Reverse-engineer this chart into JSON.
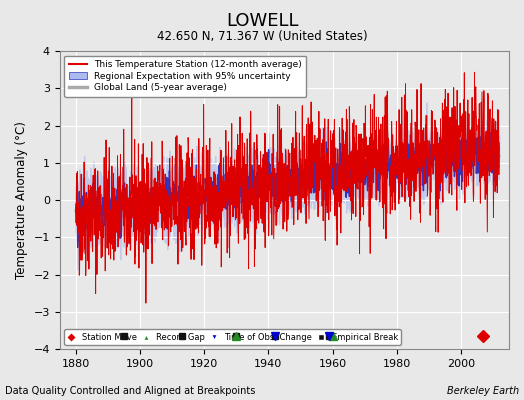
{
  "title": "LOWELL",
  "subtitle": "42.650 N, 71.367 W (United States)",
  "xlabel_bottom": "Data Quality Controlled and Aligned at Breakpoints",
  "xlabel_right": "Berkeley Earth",
  "ylabel": "Temperature Anomaly (°C)",
  "xlim": [
    1875,
    2015
  ],
  "ylim": [
    -4,
    4
  ],
  "yticks": [
    -4,
    -3,
    -2,
    -1,
    0,
    1,
    2,
    3,
    4
  ],
  "xticks": [
    1880,
    1900,
    1920,
    1940,
    1960,
    1980,
    2000
  ],
  "legend_items": [
    {
      "label": "This Temperature Station (12-month average)",
      "color": "#dd0000",
      "lw": 1.5
    },
    {
      "label": "Regional Expectation with 95% uncertainty",
      "color": "#4444cc",
      "lw": 1.5
    },
    {
      "label": "Global Land (5-year average)",
      "color": "#aaaaaa",
      "lw": 2.5
    }
  ],
  "marker_legend": [
    {
      "label": "Station Move",
      "color": "#dd0000",
      "marker": "D"
    },
    {
      "label": "Record Gap",
      "color": "#228B22",
      "marker": "^"
    },
    {
      "label": "Time of Obs. Change",
      "color": "#0000cc",
      "marker": "v"
    },
    {
      "label": "Empirical Break",
      "color": "#222222",
      "marker": "s"
    }
  ],
  "station_moves": [
    2007
  ],
  "record_gaps": [
    1930,
    1960
  ],
  "time_obs_changes": [
    1942,
    1959
  ],
  "empirical_breaks": [
    1895,
    1913,
    1930,
    1942,
    1959
  ],
  "bg_color": "#e8e8e8",
  "plot_bg_color": "#e8e8e8",
  "grid_color": "#ffffff",
  "seed": 42
}
